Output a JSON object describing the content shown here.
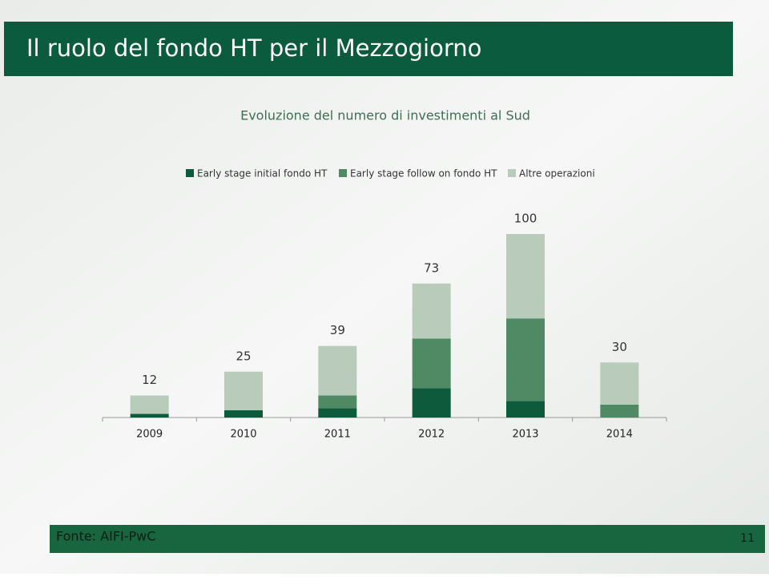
{
  "header": {
    "title": "Il ruolo del fondo HT per il Mezzogiorno"
  },
  "chart_data": {
    "type": "stacked_bar",
    "title": "Evoluzione del numero di investimenti al Sud",
    "categories": [
      "2009",
      "2010",
      "2011",
      "2012",
      "2013",
      "2014"
    ],
    "series": [
      {
        "name": "Early stage initial fondo HT",
        "color": "#0d5a3c",
        "values": [
          2,
          4,
          5,
          16,
          9,
          0
        ]
      },
      {
        "name": "Early stage follow on fondo HT",
        "color": "#4f8a64",
        "values": [
          0,
          0,
          7,
          27,
          45,
          7
        ]
      },
      {
        "name": "Altre operazioni",
        "color": "#b9cbbb",
        "values": [
          10,
          21,
          27,
          30,
          46,
          23
        ]
      }
    ],
    "totals": [
      12,
      25,
      39,
      73,
      100,
      30
    ],
    "legend": "top"
  },
  "footer": {
    "source": "Fonte: AIFI-PwC",
    "page": "11"
  }
}
